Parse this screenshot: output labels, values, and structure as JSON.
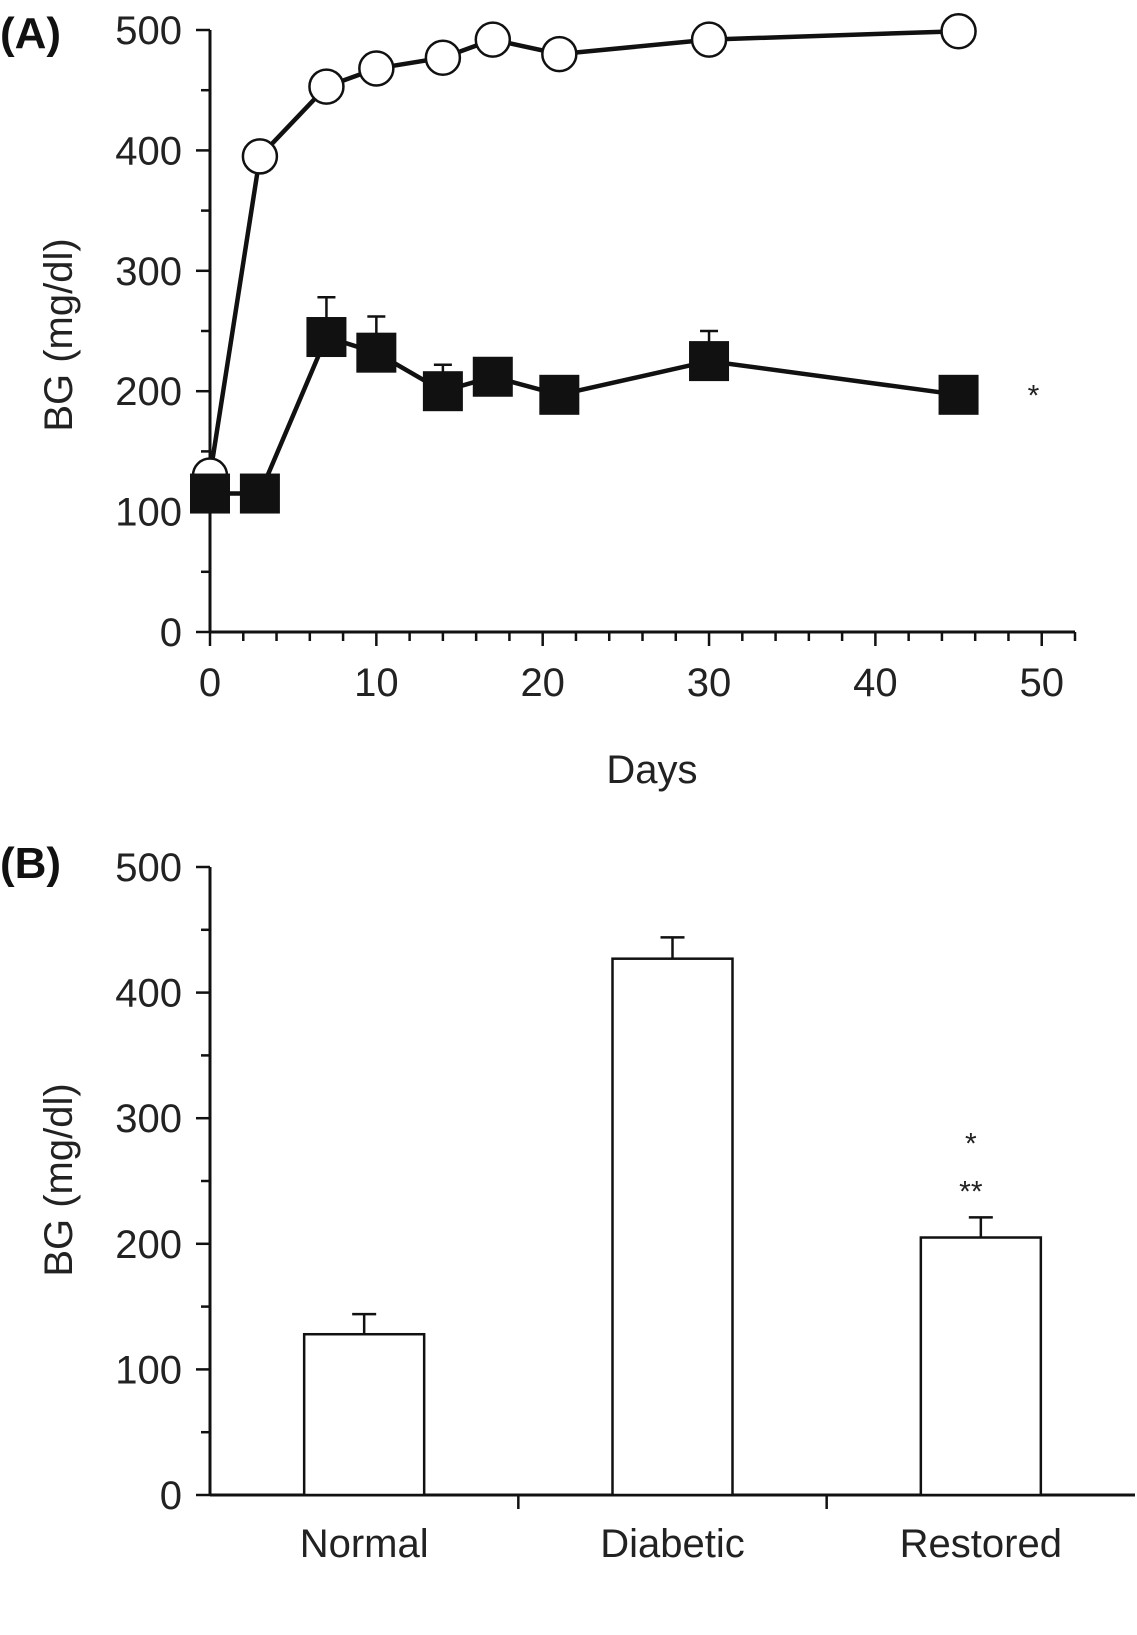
{
  "chart_data": [
    {
      "panel": "(A)",
      "type": "line",
      "xlabel": "Days",
      "ylabel": "BG (mg/dl)",
      "xlim": [
        0,
        52
      ],
      "ylim": [
        0,
        500
      ],
      "x_ticks": [
        "0",
        "10",
        "20",
        "30",
        "40",
        "50"
      ],
      "y_ticks": [
        "0",
        "100",
        "200",
        "300",
        "400",
        "500"
      ],
      "grid": false,
      "series": [
        {
          "marker": "open-circle",
          "points": [
            {
              "x": 0,
              "y": 130
            },
            {
              "x": 3,
              "y": 395
            },
            {
              "x": 7,
              "y": 453
            },
            {
              "x": 10,
              "y": 468
            },
            {
              "x": 14,
              "y": 477
            },
            {
              "x": 17,
              "y": 492
            },
            {
              "x": 21,
              "y": 480
            },
            {
              "x": 30,
              "y": 492
            },
            {
              "x": 45,
              "y": 499
            }
          ]
        },
        {
          "marker": "filled-square",
          "points": [
            {
              "x": 0,
              "y": 115,
              "err": 0
            },
            {
              "x": 3,
              "y": 115,
              "err": 0
            },
            {
              "x": 7,
              "y": 245,
              "err": 33
            },
            {
              "x": 10,
              "y": 232,
              "err": 30
            },
            {
              "x": 14,
              "y": 200,
              "err": 22
            },
            {
              "x": 17,
              "y": 212,
              "err": 0
            },
            {
              "x": 21,
              "y": 197,
              "err": 0
            },
            {
              "x": 30,
              "y": 225,
              "err": 25
            },
            {
              "x": 45,
              "y": 197,
              "err": 0
            }
          ]
        }
      ],
      "annotations": [
        {
          "text": "*",
          "x": 49.5,
          "y": 188
        }
      ]
    },
    {
      "panel": "(B)",
      "type": "bar",
      "xlabel": "",
      "ylabel": "BG (mg/dl)",
      "ylim": [
        0,
        500
      ],
      "y_ticks": [
        "0",
        "100",
        "200",
        "300",
        "400",
        "500"
      ],
      "grid": false,
      "categories": [
        "Normal",
        "Diabetic",
        "Restored"
      ],
      "values": [
        128,
        427,
        205
      ],
      "errors": [
        16,
        17,
        16
      ],
      "annotations": [
        {
          "category": "Restored",
          "lines": [
            "*",
            "**"
          ]
        }
      ]
    }
  ]
}
